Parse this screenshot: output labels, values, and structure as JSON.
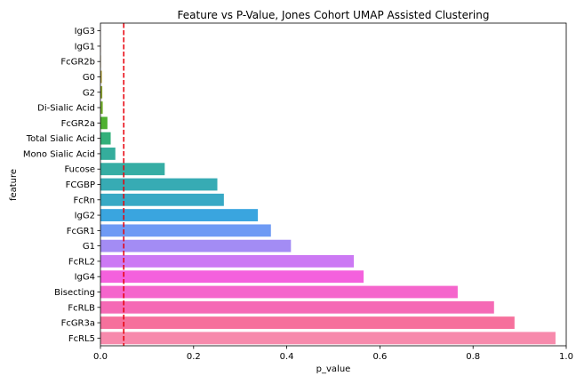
{
  "chart_data": {
    "type": "bar",
    "orientation": "horizontal",
    "title": "Feature vs P-Value, Jones Cohort UMAP Assisted Clustering",
    "xlabel": "p_value",
    "ylabel": "feature",
    "xlim": [
      0,
      1.0
    ],
    "xticks": [
      "0.0",
      "0.2",
      "0.4",
      "0.6",
      "0.8",
      "1.0"
    ],
    "grid": false,
    "legend": "none",
    "threshold": {
      "value": 0.05,
      "color": "#e8000b",
      "style": "dashed"
    },
    "categories": [
      "IgG3",
      "IgG1",
      "FcGR2b",
      "G0",
      "G2",
      "Di-Sialic Acid",
      "FcGR2a",
      "Total Sialic Acid",
      "Mono Sialic Acid",
      "Fucose",
      "FCGBP",
      "FcRn",
      "IgG2",
      "FcGR1",
      "G1",
      "FcRL2",
      "IgG4",
      "Bisecting",
      "FcRLB",
      "FcGR3a",
      "FcRL5"
    ],
    "values": [
      0.0002,
      0.0005,
      0.001,
      0.003,
      0.004,
      0.005,
      0.015,
      0.022,
      0.032,
      0.138,
      0.251,
      0.265,
      0.338,
      0.366,
      0.409,
      0.544,
      0.565,
      0.767,
      0.845,
      0.889,
      0.977
    ],
    "colors": [
      "#f67088",
      "#f37932",
      "#ca9131",
      "#ad9c31",
      "#8ea531",
      "#77b131",
      "#4fb031",
      "#33b07a",
      "#35ad9c",
      "#36ada4",
      "#37abb4",
      "#38a9c5",
      "#3aa5df",
      "#6e9af4",
      "#a38cf4",
      "#cc79f4",
      "#f461dd",
      "#f565cc",
      "#f56ab5",
      "#f6709c",
      "#f78aac"
    ]
  }
}
